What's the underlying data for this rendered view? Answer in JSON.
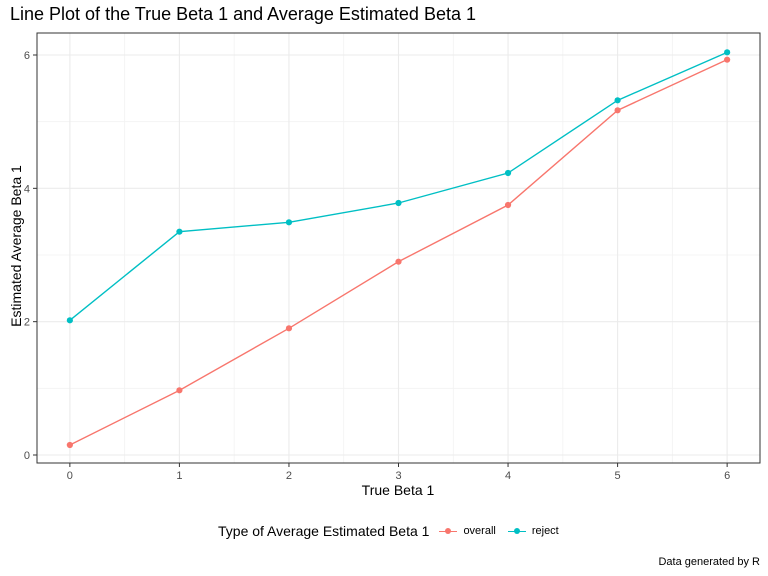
{
  "chart_data": {
    "type": "line",
    "title": "Line Plot of the True Beta 1 and Average Estimated Beta 1",
    "xlabel": "True Beta 1",
    "ylabel": "Estimated Average Beta 1",
    "caption": "Data generated by R",
    "x": [
      0,
      1,
      2,
      3,
      4,
      5,
      6
    ],
    "xticks": [
      "0",
      "1",
      "2",
      "3",
      "4",
      "5",
      "6"
    ],
    "yticks": [
      "0",
      "2",
      "4",
      "6"
    ],
    "xlim": [
      -0.3,
      6.3
    ],
    "ylim": [
      -0.12,
      6.33
    ],
    "grid": true,
    "legend_position": "bottom",
    "legend_title": "Type of Average Estimated Beta 1",
    "series": [
      {
        "name": "overall",
        "color": "#F8766D",
        "values": [
          0.15,
          0.97,
          1.9,
          2.9,
          3.75,
          5.17,
          5.93
        ]
      },
      {
        "name": "reject",
        "color": "#00BFC4",
        "values": [
          2.02,
          3.35,
          3.49,
          3.78,
          4.23,
          5.32,
          6.04
        ]
      }
    ]
  }
}
